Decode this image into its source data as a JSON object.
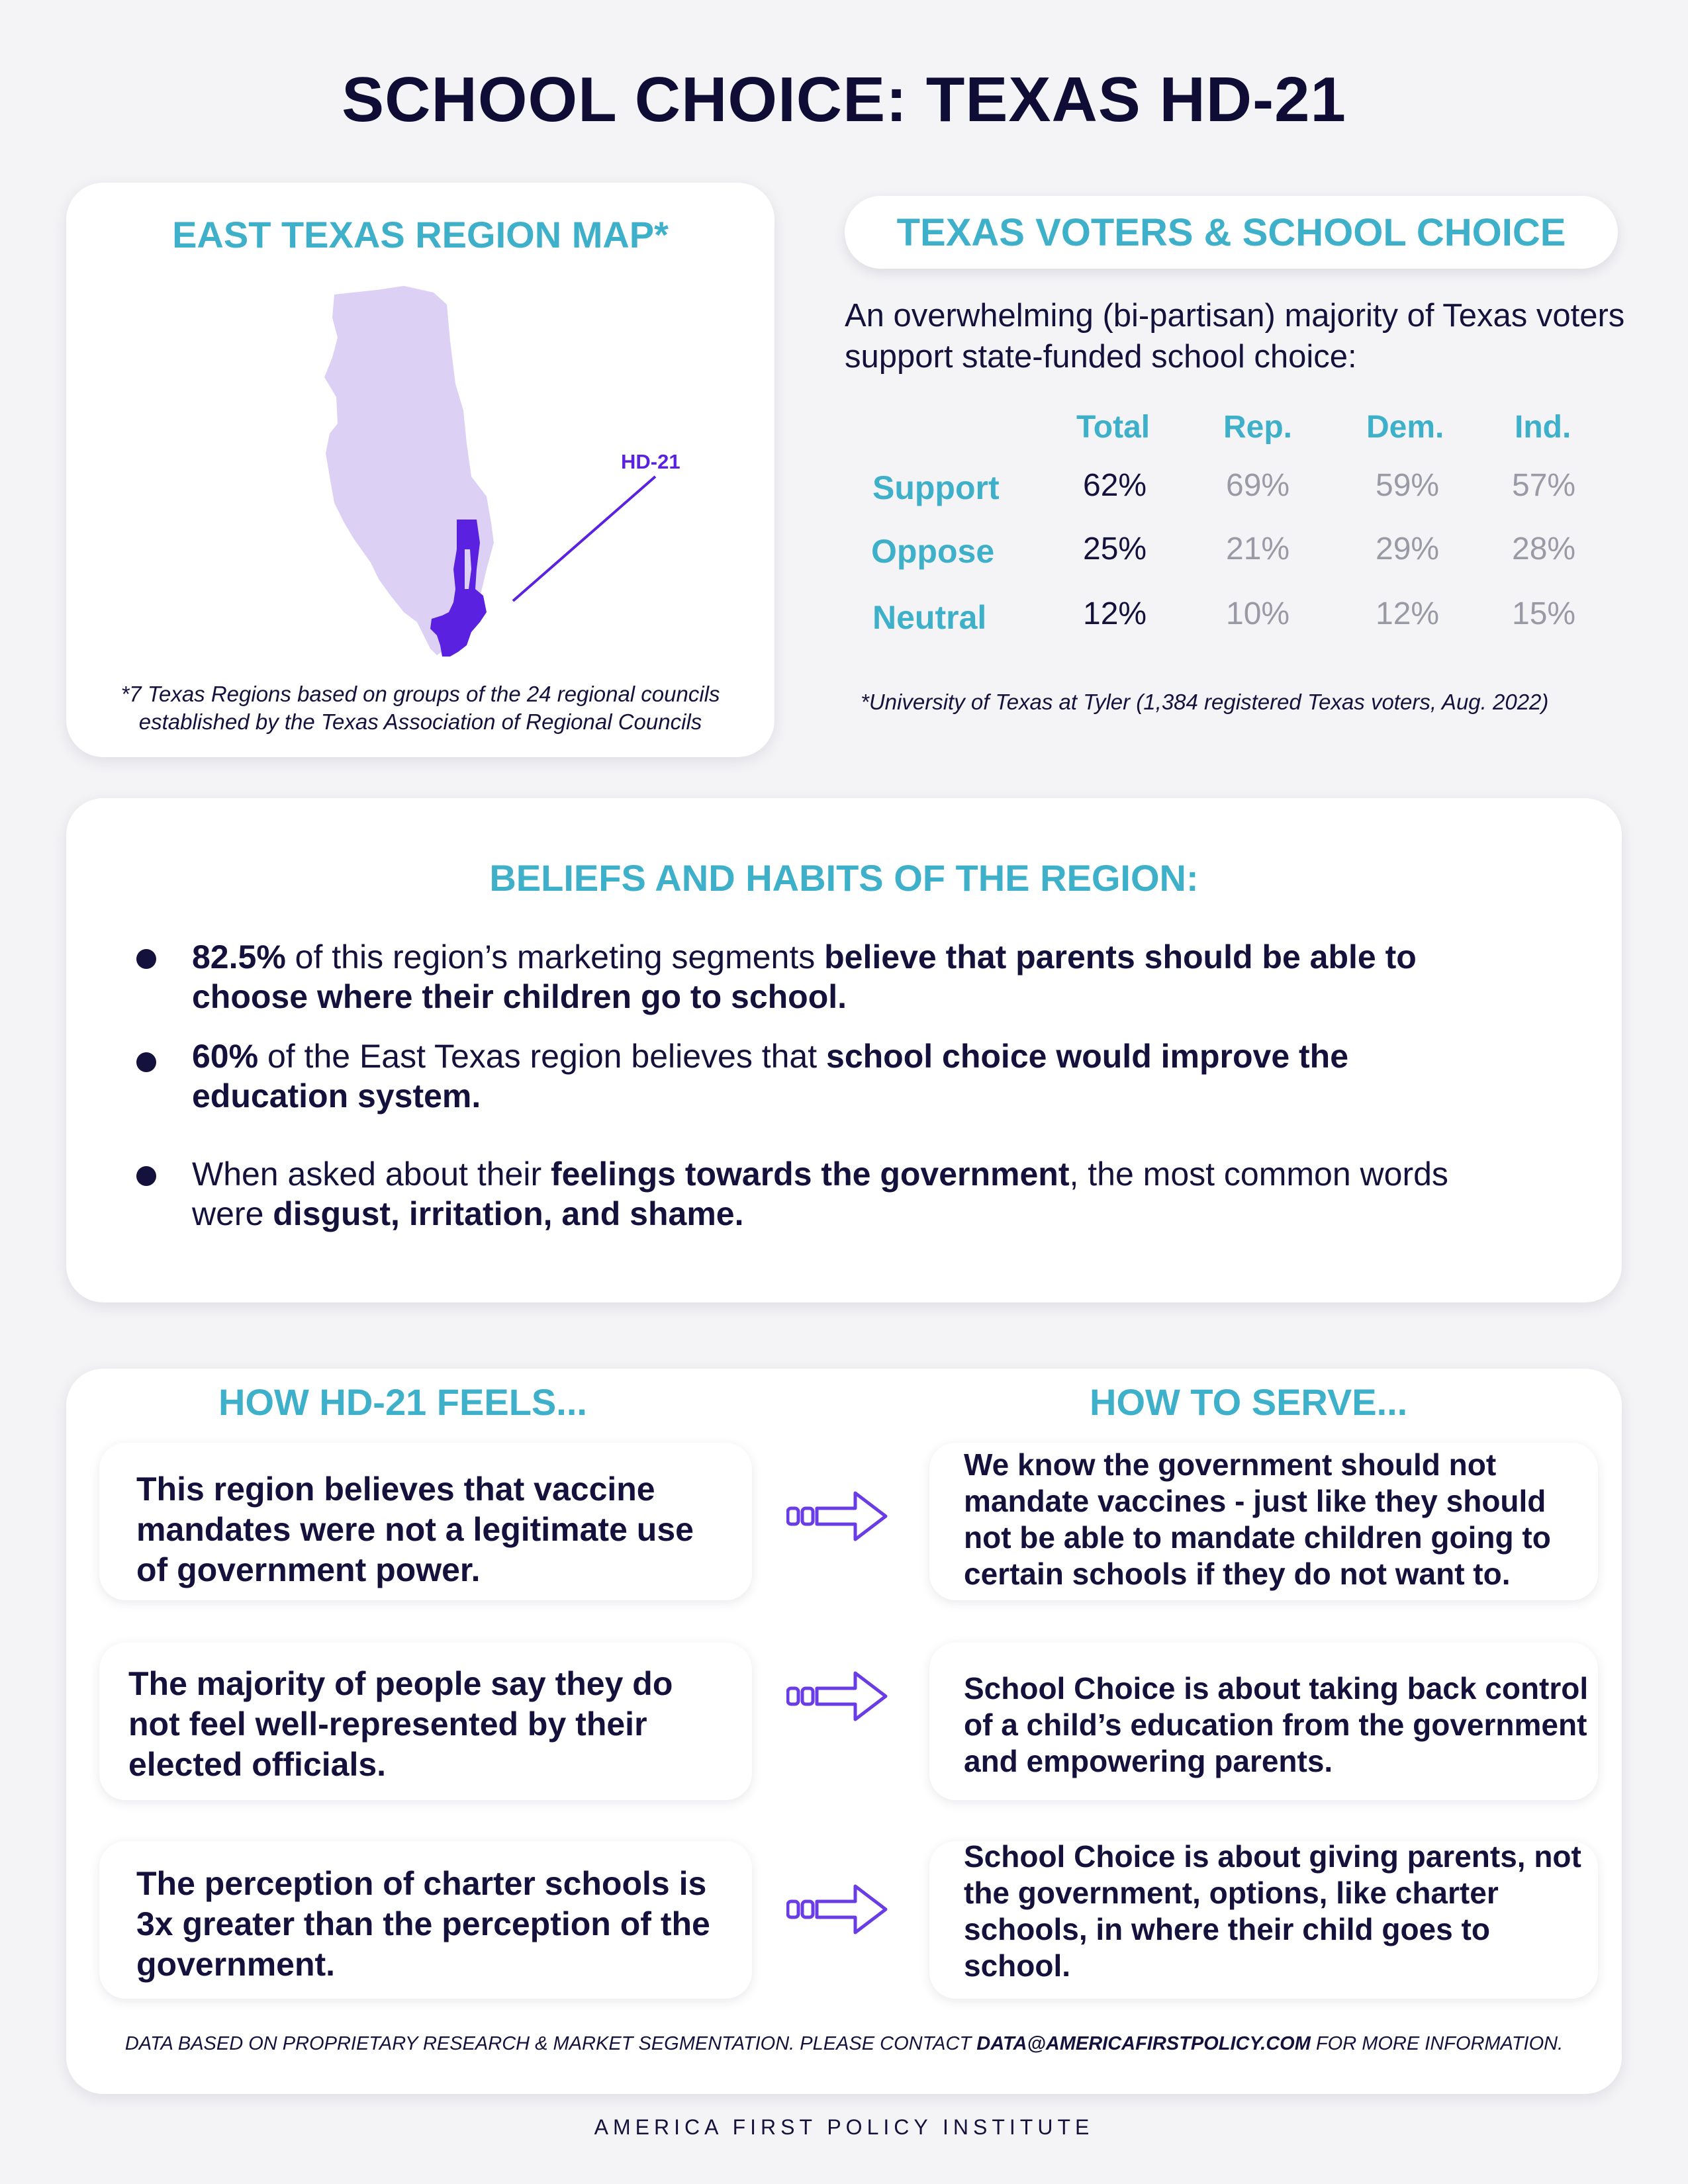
{
  "title": "SCHOOL CHOICE: TEXAS HD-21",
  "map": {
    "title": "EAST TEXAS REGION MAP*",
    "hd_label": "HD-21",
    "note": "*7 Texas Regions based on groups of the 24 regional councils established by the Texas Association of Regional Councils",
    "colors": {
      "region": "#dcd0f5",
      "district": "#5a21e0"
    }
  },
  "voters": {
    "title": "TEXAS VOTERS & SCHOOL CHOICE",
    "intro": "An overwhelming (bi-partisan) majority of Texas voters support state-funded school choice:",
    "columns": [
      "Total",
      "Rep.",
      "Dem.",
      "Ind."
    ],
    "rows": [
      {
        "label": "Support",
        "values": [
          "62%",
          "69%",
          "59%",
          "57%"
        ]
      },
      {
        "label": "Oppose",
        "values": [
          "25%",
          "21%",
          "29%",
          "28%"
        ]
      },
      {
        "label": "Neutral",
        "values": [
          "12%",
          "10%",
          "12%",
          "15%"
        ]
      }
    ],
    "source": "*University of Texas at Tyler (1,384 registered Texas voters, Aug. 2022)"
  },
  "beliefs": {
    "title": "BELIEFS AND HABITS OF THE REGION:",
    "bullets": [
      {
        "b1": "82.5%",
        "t1": " of this region’s marketing segments ",
        "b2": "believe that parents should be able to choose where their children go to school.",
        "t2": "",
        "b3": ""
      },
      {
        "b1": "60%",
        "t1": " of the East Texas region believes that ",
        "b2": "school choice would improve the education system.",
        "t2": "",
        "b3": ""
      },
      {
        "b1": "",
        "t1": "When asked about their ",
        "b2": "feelings towards the government",
        "t2": ", the most common words were ",
        "b3": "disgust, irritation, and shame."
      }
    ]
  },
  "feels": {
    "title": "HOW HD-21 FEELS...",
    "items": [
      "This region believes that vaccine mandates were not a legitimate use of government power.",
      "The majority of people say they do not feel well-represented by their elected officials.",
      "The perception of charter schools is 3x greater than the perception of the government."
    ]
  },
  "serve": {
    "title": "HOW TO SERVE...",
    "items": [
      "We know the government should not mandate vaccines - just like they should not be able to mandate children going to certain schools if they do not want to.",
      "School Choice is about taking back control of a child’s education from the government and empowering parents.",
      "School Choice is about giving parents, not the government, options, like charter schools, in where their child goes to school."
    ]
  },
  "arrow_icon": "triple-arrow-right-icon",
  "footer": {
    "note_pre": "DATA BASED ON PROPRIETARY RESEARCH & MARKET SEGMENTATION. PLEASE CONTACT ",
    "email": "DATA@AMERICAFIRSTPOLICY.COM",
    "note_post": " FOR MORE INFORMATION.",
    "org": "AMERICA FIRST POLICY INSTITUTE"
  },
  "colors": {
    "teal": "#3fb0c9",
    "navy": "#14123d",
    "purple": "#5a21e0",
    "grey": "#9a9aa6"
  }
}
